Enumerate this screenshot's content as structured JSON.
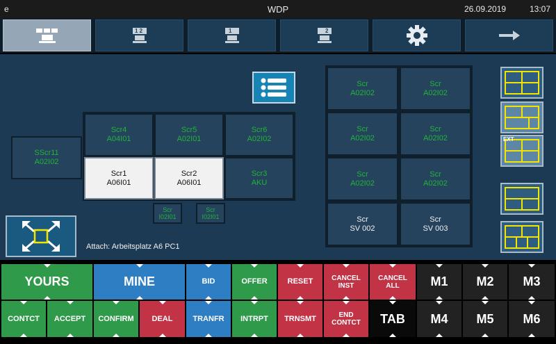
{
  "titlebar": {
    "left_glyph": "e",
    "title": "WDP",
    "date": "26.09.2019",
    "time": "13:07"
  },
  "tabs": {
    "tab2_badge": "1 2",
    "tab3_badge": "1",
    "tab4_badge": "2"
  },
  "screens": {
    "sscr11": {
      "name": "SScr11",
      "id": "A02I02"
    },
    "scr4": {
      "name": "Scr4",
      "id": "A04I01"
    },
    "scr5": {
      "name": "Scr5",
      "id": "A02I01"
    },
    "scr6": {
      "name": "Scr6",
      "id": "A02I02"
    },
    "scr1": {
      "name": "Scr1",
      "id": "A06I01"
    },
    "scr2": {
      "name": "Scr2",
      "id": "A06I01"
    },
    "scr3": {
      "name": "Scr3",
      "id": "AKU"
    },
    "small_a": {
      "name": "Scr",
      "id": "I02I01"
    },
    "small_b": {
      "name": "Scr",
      "id": "I02I01"
    }
  },
  "right_grid": [
    {
      "name": "Scr",
      "id": "A02I02"
    },
    {
      "name": "Scr",
      "id": "A02I02"
    },
    {
      "name": "Scr",
      "id": "A02I02"
    },
    {
      "name": "Scr",
      "id": "A02I02"
    },
    {
      "name": "Scr",
      "id": "A02I02"
    },
    {
      "name": "Scr",
      "id": "A02I02"
    },
    {
      "name": "Scr",
      "id": "SV 002"
    },
    {
      "name": "Scr",
      "id": "SV 003"
    }
  ],
  "attach_text": "Attach: Arbeitsplatz A6 PC1",
  "layout_ext_label": "EXT",
  "keys": {
    "yours": "YOURS",
    "mine": "MINE",
    "bid": "BID",
    "offer": "OFFER",
    "reset": "RESET",
    "cancel_inst": "CANCEL INST",
    "cancel_all": "CANCEL ALL",
    "m1": "M1",
    "m2": "M2",
    "m3": "M3",
    "contct": "CONTCT",
    "accept": "ACCEPT",
    "confirm": "CONFIRM",
    "deal": "DEAL",
    "tranfr": "TRANFR",
    "intrpt": "INTRPT",
    "trnsmt": "TRNSMT",
    "end_contct": "END CONTCT",
    "tab": "TAB",
    "m4": "M4",
    "m5": "M5",
    "m6": "M6"
  },
  "colors": {
    "green_text": "#21b43a",
    "panel": "#1c3a53",
    "key_green": "#2f9a4a",
    "key_blue": "#2d7ec3",
    "key_red": "#c23445",
    "layout_line": "#f2e600"
  }
}
